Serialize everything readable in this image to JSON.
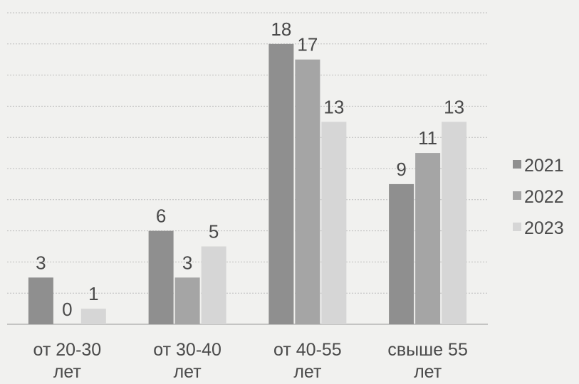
{
  "chart_data": {
    "type": "bar",
    "categories": [
      [
        "от 20-30",
        "лет"
      ],
      [
        "от 30-40",
        "лет"
      ],
      [
        "от 40-55",
        "лет"
      ],
      [
        "свыше 55",
        "лет"
      ]
    ],
    "series": [
      {
        "name": "2021",
        "color": "#8f8f8f",
        "values": [
          3,
          6,
          18,
          9
        ]
      },
      {
        "name": "2022",
        "color": "#a5a5a5",
        "values": [
          0,
          3,
          17,
          11
        ]
      },
      {
        "name": "2023",
        "color": "#d6d6d6",
        "values": [
          1,
          5,
          13,
          13
        ]
      }
    ],
    "ylim": [
      0,
      20
    ],
    "grid": true,
    "legend_position": "right",
    "title": "",
    "xlabel": "",
    "ylabel": ""
  }
}
